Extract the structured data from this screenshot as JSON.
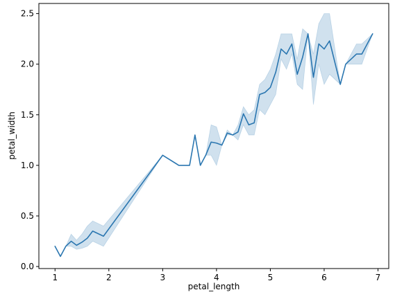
{
  "chart_data": {
    "type": "line",
    "xlabel": "petal_length",
    "ylabel": "petal_width",
    "xlim": [
      0.7,
      7.2
    ],
    "ylim": [
      -0.02,
      2.6
    ],
    "xticks": [
      1,
      2,
      3,
      4,
      5,
      6,
      7
    ],
    "xtick_labels": [
      "1",
      "2",
      "3",
      "4",
      "5",
      "6",
      "7"
    ],
    "yticks": [
      0.0,
      0.5,
      1.0,
      1.5,
      2.0,
      2.5
    ],
    "ytick_labels": [
      "0.0",
      "0.5",
      "1.0",
      "1.5",
      "2.0",
      "2.5"
    ],
    "grid": false,
    "line_color": "#2a76b0",
    "band_color": "#2a76b0",
    "series": [
      {
        "x": [
          1.0,
          1.1,
          1.2,
          1.3,
          1.4,
          1.5,
          1.6,
          1.7,
          1.9,
          3.0,
          3.3,
          3.5,
          3.6,
          3.7,
          3.8,
          3.9,
          4.0,
          4.1,
          4.2,
          4.3,
          4.4,
          4.5,
          4.6,
          4.7,
          4.8,
          4.9,
          5.0,
          5.1,
          5.2,
          5.3,
          5.4,
          5.5,
          5.6,
          5.7,
          5.8,
          5.9,
          6.0,
          6.1,
          6.3,
          6.4,
          6.6,
          6.7,
          6.9
        ],
        "y": [
          0.2,
          0.1,
          0.2,
          0.25,
          0.21,
          0.24,
          0.28,
          0.35,
          0.3,
          1.1,
          1.0,
          1.0,
          1.3,
          1.0,
          1.1,
          1.23,
          1.22,
          1.2,
          1.32,
          1.3,
          1.33,
          1.51,
          1.4,
          1.42,
          1.7,
          1.72,
          1.77,
          1.92,
          2.15,
          2.1,
          2.2,
          1.9,
          2.07,
          2.3,
          1.87,
          2.2,
          2.15,
          2.23,
          1.8,
          2.0,
          2.1,
          2.1,
          2.3
        ],
        "lo": [
          0.2,
          0.1,
          0.2,
          0.2,
          0.17,
          0.18,
          0.2,
          0.25,
          0.2,
          1.1,
          1.0,
          1.0,
          1.3,
          1.0,
          1.1,
          1.1,
          1.0,
          1.2,
          1.3,
          1.3,
          1.25,
          1.4,
          1.3,
          1.3,
          1.55,
          1.5,
          1.6,
          1.7,
          2.05,
          1.95,
          2.1,
          1.8,
          1.75,
          2.3,
          1.6,
          2.0,
          1.8,
          1.9,
          1.8,
          2.0,
          2.0,
          2.0,
          2.3
        ],
        "hi": [
          0.2,
          0.1,
          0.2,
          0.32,
          0.26,
          0.32,
          0.4,
          0.45,
          0.4,
          1.1,
          1.0,
          1.0,
          1.3,
          1.0,
          1.1,
          1.4,
          1.38,
          1.2,
          1.35,
          1.3,
          1.4,
          1.58,
          1.5,
          1.55,
          1.8,
          1.85,
          1.95,
          2.1,
          2.3,
          2.3,
          2.3,
          2.05,
          2.35,
          2.3,
          2.1,
          2.4,
          2.5,
          2.5,
          1.8,
          2.0,
          2.2,
          2.2,
          2.3
        ]
      }
    ]
  }
}
